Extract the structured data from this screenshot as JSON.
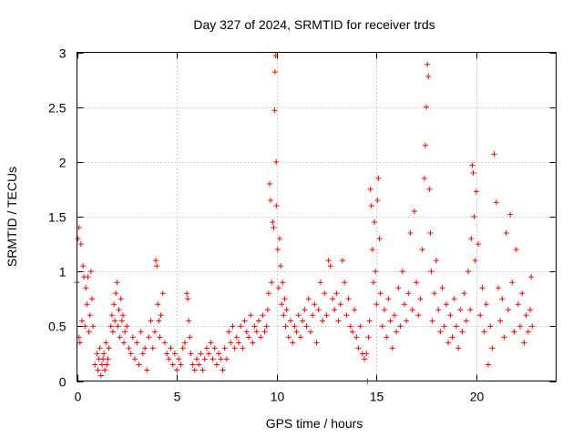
{
  "chart_data": {
    "type": "scatter",
    "title": "Day 327 of 2024, SRMTID for receiver trds",
    "xlabel": "GPS time / hours",
    "ylabel": "SRMTID / TECUs",
    "xlim": [
      0,
      24
    ],
    "ylim": [
      0,
      3
    ],
    "grid": true,
    "marker": "plus",
    "color": "#ff0000",
    "xticks": [
      0,
      5,
      10,
      15,
      20
    ],
    "xtick_labels": [
      "0",
      "5",
      "10",
      "15",
      "20"
    ],
    "yticks": [
      0,
      0.5,
      1,
      1.5,
      2,
      2.5,
      3
    ],
    "ytick_labels": [
      "0",
      "0.5",
      "1",
      "1.5",
      "2",
      "2.5",
      "3"
    ],
    "series": [
      {
        "name": "SRMTID",
        "points": [
          [
            0.0,
            0.9
          ],
          [
            0.05,
            1.3
          ],
          [
            0.1,
            1.4
          ],
          [
            0.1,
            0.4
          ],
          [
            0.15,
            0.35
          ],
          [
            0.2,
            1.25
          ],
          [
            0.25,
            0.55
          ],
          [
            0.3,
            1.05
          ],
          [
            0.35,
            0.95
          ],
          [
            0.4,
            0.5
          ],
          [
            0.45,
            0.85
          ],
          [
            0.5,
            0.7
          ],
          [
            0.55,
            0.95
          ],
          [
            0.6,
            0.45
          ],
          [
            0.65,
            0.6
          ],
          [
            0.7,
            1.0
          ],
          [
            0.75,
            0.75
          ],
          [
            0.8,
            0.5
          ],
          [
            0.9,
            0.15
          ],
          [
            1.0,
            0.25
          ],
          [
            1.05,
            0.1
          ],
          [
            1.1,
            0.2
          ],
          [
            1.15,
            0.3
          ],
          [
            1.2,
            0.05
          ],
          [
            1.25,
            0.15
          ],
          [
            1.3,
            0.2
          ],
          [
            1.35,
            0.25
          ],
          [
            1.4,
            0.1
          ],
          [
            1.45,
            0.35
          ],
          [
            1.5,
            0.15
          ],
          [
            1.55,
            0.2
          ],
          [
            1.6,
            0.3
          ],
          [
            1.7,
            0.5
          ],
          [
            1.75,
            0.6
          ],
          [
            1.8,
            0.45
          ],
          [
            1.85,
            0.7
          ],
          [
            1.9,
            0.55
          ],
          [
            1.95,
            0.8
          ],
          [
            2.0,
            0.9
          ],
          [
            2.05,
            0.5
          ],
          [
            2.1,
            0.65
          ],
          [
            2.15,
            0.4
          ],
          [
            2.2,
            0.75
          ],
          [
            2.25,
            0.55
          ],
          [
            2.3,
            0.6
          ],
          [
            2.35,
            0.35
          ],
          [
            2.4,
            0.45
          ],
          [
            2.5,
            0.5
          ],
          [
            2.6,
            0.3
          ],
          [
            2.7,
            0.25
          ],
          [
            2.8,
            0.4
          ],
          [
            2.9,
            0.2
          ],
          [
            3.0,
            0.35
          ],
          [
            3.1,
            0.15
          ],
          [
            3.2,
            0.45
          ],
          [
            3.3,
            0.25
          ],
          [
            3.4,
            0.3
          ],
          [
            3.5,
            0.1
          ],
          [
            3.6,
            0.4
          ],
          [
            3.7,
            0.55
          ],
          [
            3.8,
            0.3
          ],
          [
            3.9,
            0.45
          ],
          [
            3.95,
            1.1
          ],
          [
            4.0,
            1.05
          ],
          [
            4.05,
            0.7
          ],
          [
            4.1,
            0.55
          ],
          [
            4.15,
            0.4
          ],
          [
            4.2,
            0.6
          ],
          [
            4.3,
            0.8
          ],
          [
            4.4,
            0.35
          ],
          [
            4.5,
            0.25
          ],
          [
            4.6,
            0.2
          ],
          [
            4.7,
            0.3
          ],
          [
            4.8,
            0.15
          ],
          [
            4.9,
            0.25
          ],
          [
            5.0,
            0.1
          ],
          [
            5.1,
            0.2
          ],
          [
            5.2,
            0.15
          ],
          [
            5.3,
            0.3
          ],
          [
            5.4,
            0.35
          ],
          [
            5.5,
            0.8
          ],
          [
            5.55,
            0.75
          ],
          [
            5.6,
            0.55
          ],
          [
            5.65,
            0.4
          ],
          [
            5.7,
            0.25
          ],
          [
            5.8,
            0.15
          ],
          [
            5.9,
            0.1
          ],
          [
            6.0,
            0.2
          ],
          [
            6.1,
            0.15
          ],
          [
            6.2,
            0.25
          ],
          [
            6.3,
            0.1
          ],
          [
            6.4,
            0.2
          ],
          [
            6.5,
            0.3
          ],
          [
            6.6,
            0.25
          ],
          [
            6.7,
            0.35
          ],
          [
            6.8,
            0.2
          ],
          [
            6.9,
            0.3
          ],
          [
            7.0,
            0.15
          ],
          [
            7.1,
            0.25
          ],
          [
            7.2,
            0.2
          ],
          [
            7.3,
            0.1
          ],
          [
            7.4,
            0.3
          ],
          [
            7.5,
            0.2
          ],
          [
            7.6,
            0.45
          ],
          [
            7.7,
            0.35
          ],
          [
            7.8,
            0.5
          ],
          [
            7.9,
            0.3
          ],
          [
            8.0,
            0.4
          ],
          [
            8.1,
            0.35
          ],
          [
            8.2,
            0.5
          ],
          [
            8.3,
            0.3
          ],
          [
            8.4,
            0.55
          ],
          [
            8.5,
            0.45
          ],
          [
            8.6,
            0.4
          ],
          [
            8.7,
            0.6
          ],
          [
            8.8,
            0.35
          ],
          [
            8.9,
            0.5
          ],
          [
            9.0,
            0.45
          ],
          [
            9.1,
            0.55
          ],
          [
            9.2,
            0.4
          ],
          [
            9.3,
            0.6
          ],
          [
            9.4,
            0.45
          ],
          [
            9.5,
            0.5
          ],
          [
            9.55,
            0.65
          ],
          [
            9.6,
            0.8
          ],
          [
            9.65,
            1.8
          ],
          [
            9.7,
            1.65
          ],
          [
            9.75,
            0.9
          ],
          [
            9.8,
            1.45
          ],
          [
            9.85,
            1.4
          ],
          [
            9.9,
            2.47
          ],
          [
            9.92,
            2.82
          ],
          [
            9.95,
            2.97
          ],
          [
            9.98,
            2.0
          ],
          [
            10.0,
            1.6
          ],
          [
            10.05,
            1.2
          ],
          [
            10.1,
            0.85
          ],
          [
            10.15,
            1.3
          ],
          [
            10.2,
            1.05
          ],
          [
            10.25,
            0.7
          ],
          [
            10.3,
            0.9
          ],
          [
            10.35,
            0.6
          ],
          [
            10.4,
            0.75
          ],
          [
            10.45,
            0.5
          ],
          [
            10.5,
            0.65
          ],
          [
            10.6,
            0.4
          ],
          [
            10.7,
            0.55
          ],
          [
            10.8,
            0.35
          ],
          [
            10.9,
            0.5
          ],
          [
            11.0,
            0.45
          ],
          [
            11.1,
            0.6
          ],
          [
            11.2,
            0.4
          ],
          [
            11.3,
            0.55
          ],
          [
            11.4,
            0.65
          ],
          [
            11.5,
            0.5
          ],
          [
            11.6,
            0.75
          ],
          [
            11.7,
            0.45
          ],
          [
            11.8,
            0.6
          ],
          [
            11.9,
            0.7
          ],
          [
            12.0,
            0.35
          ],
          [
            12.1,
            0.65
          ],
          [
            12.2,
            0.9
          ],
          [
            12.3,
            0.55
          ],
          [
            12.4,
            0.8
          ],
          [
            12.5,
            0.6
          ],
          [
            12.6,
            1.1
          ],
          [
            12.7,
            1.05
          ],
          [
            12.8,
            0.75
          ],
          [
            12.9,
            0.65
          ],
          [
            13.0,
            0.8
          ],
          [
            13.1,
            0.55
          ],
          [
            13.2,
            0.7
          ],
          [
            13.3,
            1.1
          ],
          [
            13.4,
            0.9
          ],
          [
            13.5,
            0.6
          ],
          [
            13.6,
            0.75
          ],
          [
            13.7,
            0.5
          ],
          [
            13.8,
            0.45
          ],
          [
            13.9,
            0.65
          ],
          [
            14.0,
            0.4
          ],
          [
            14.1,
            0.3
          ],
          [
            14.2,
            0.5
          ],
          [
            14.3,
            0.25
          ],
          [
            14.4,
            0.2
          ],
          [
            14.5,
            0.25
          ],
          [
            14.55,
            0.0
          ],
          [
            14.6,
            0.4
          ],
          [
            14.65,
            0.55
          ],
          [
            14.7,
            1.75
          ],
          [
            14.75,
            1.6
          ],
          [
            14.8,
            1.2
          ],
          [
            14.85,
            0.9
          ],
          [
            14.9,
            1.45
          ],
          [
            14.95,
            1.0
          ],
          [
            15.0,
            0.7
          ],
          [
            15.05,
            1.65
          ],
          [
            15.1,
            1.85
          ],
          [
            15.15,
            1.3
          ],
          [
            15.2,
            0.8
          ],
          [
            15.3,
            0.5
          ],
          [
            15.4,
            0.65
          ],
          [
            15.5,
            0.4
          ],
          [
            15.6,
            0.75
          ],
          [
            15.7,
            0.55
          ],
          [
            15.8,
            0.3
          ],
          [
            15.9,
            0.6
          ],
          [
            16.0,
            0.45
          ],
          [
            16.1,
            0.85
          ],
          [
            16.2,
            0.5
          ],
          [
            16.3,
            1.0
          ],
          [
            16.4,
            0.7
          ],
          [
            16.5,
            0.55
          ],
          [
            16.6,
            0.8
          ],
          [
            16.7,
            1.35
          ],
          [
            16.8,
            0.65
          ],
          [
            16.9,
            1.55
          ],
          [
            17.0,
            0.9
          ],
          [
            17.1,
            0.6
          ],
          [
            17.2,
            0.75
          ],
          [
            17.3,
            1.2
          ],
          [
            17.4,
            1.85
          ],
          [
            17.45,
            2.15
          ],
          [
            17.5,
            2.5
          ],
          [
            17.55,
            2.89
          ],
          [
            17.6,
            2.78
          ],
          [
            17.65,
            1.75
          ],
          [
            17.7,
            1.35
          ],
          [
            17.75,
            1.0
          ],
          [
            17.8,
            0.55
          ],
          [
            17.9,
            0.8
          ],
          [
            18.0,
            1.1
          ],
          [
            18.1,
            0.65
          ],
          [
            18.2,
            0.45
          ],
          [
            18.3,
            0.85
          ],
          [
            18.4,
            0.5
          ],
          [
            18.5,
            0.7
          ],
          [
            18.6,
            0.35
          ],
          [
            18.7,
            0.6
          ],
          [
            18.8,
            0.4
          ],
          [
            18.9,
            0.75
          ],
          [
            19.0,
            0.5
          ],
          [
            19.1,
            0.3
          ],
          [
            19.2,
            0.65
          ],
          [
            19.3,
            0.45
          ],
          [
            19.4,
            0.8
          ],
          [
            19.5,
            0.55
          ],
          [
            19.6,
            1.0
          ],
          [
            19.7,
            0.65
          ],
          [
            19.75,
            1.3
          ],
          [
            19.8,
            1.97
          ],
          [
            19.85,
            1.9
          ],
          [
            19.9,
            1.5
          ],
          [
            19.95,
            1.1
          ],
          [
            20.0,
            1.73
          ],
          [
            20.1,
            1.25
          ],
          [
            20.2,
            0.6
          ],
          [
            20.3,
            0.85
          ],
          [
            20.4,
            0.45
          ],
          [
            20.5,
            0.7
          ],
          [
            20.6,
            0.15
          ],
          [
            20.7,
            0.5
          ],
          [
            20.8,
            0.3
          ],
          [
            20.9,
            2.07
          ],
          [
            21.0,
            1.63
          ],
          [
            21.1,
            0.85
          ],
          [
            21.2,
            0.55
          ],
          [
            21.3,
            0.75
          ],
          [
            21.4,
            0.4
          ],
          [
            21.5,
            1.35
          ],
          [
            21.6,
            0.65
          ],
          [
            21.7,
            1.52
          ],
          [
            21.8,
            0.9
          ],
          [
            21.9,
            0.45
          ],
          [
            22.0,
            1.2
          ],
          [
            22.1,
            0.7
          ],
          [
            22.2,
            0.5
          ],
          [
            22.3,
            0.8
          ],
          [
            22.4,
            0.35
          ],
          [
            22.5,
            0.6
          ],
          [
            22.6,
            0.45
          ],
          [
            22.7,
            0.65
          ],
          [
            22.75,
            0.95
          ],
          [
            22.8,
            0.5
          ]
        ]
      }
    ]
  }
}
